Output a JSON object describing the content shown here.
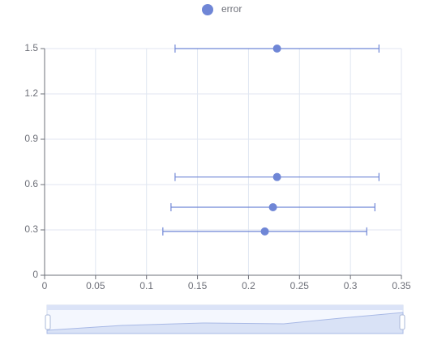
{
  "chart_data": {
    "type": "scatter",
    "series": [
      {
        "name": "error",
        "color": "#6f86d6",
        "x": [
          0.228,
          0.228,
          0.224,
          0.216
        ],
        "y": [
          1.5,
          0.65,
          0.45,
          0.29
        ],
        "errors": [
          0.1,
          0.1,
          0.1,
          0.1
        ]
      }
    ],
    "xlim": [
      0,
      0.35
    ],
    "xticks": [
      0,
      0.05,
      0.1,
      0.15,
      0.2,
      0.25,
      0.3,
      0.35
    ],
    "ylim": [
      0,
      1.5
    ],
    "yticks": [
      0,
      0.3,
      0.6,
      0.9,
      1.2,
      1.5
    ],
    "grid": true,
    "legend": "top"
  }
}
